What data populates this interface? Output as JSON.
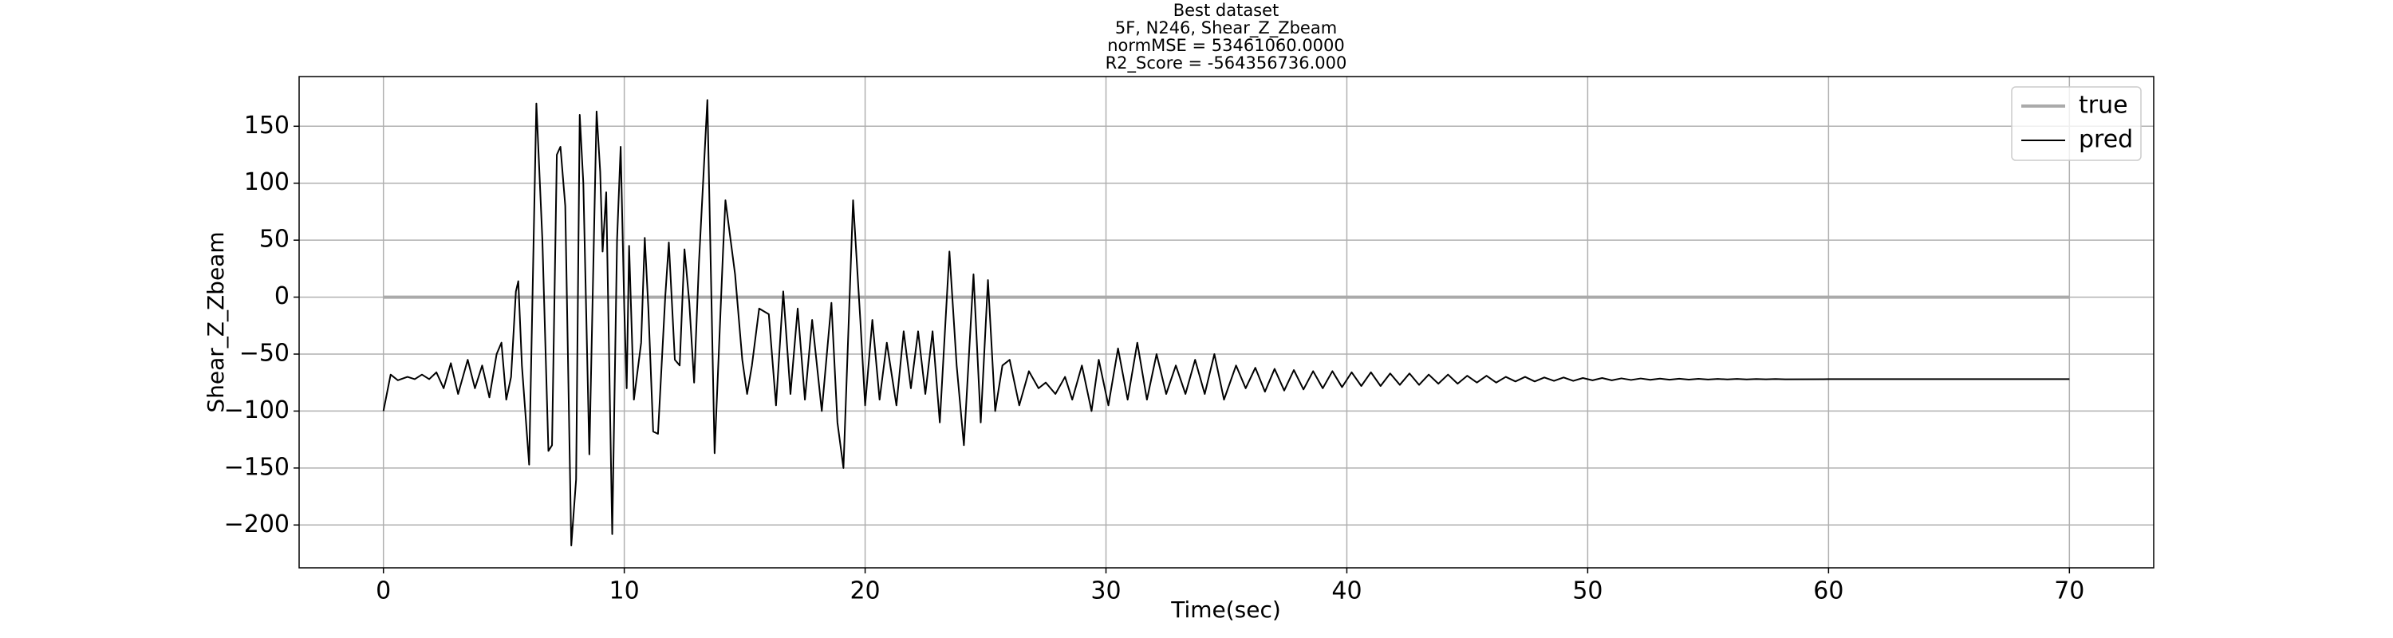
{
  "chart_data": {
    "type": "line",
    "title": [
      "Best dataset",
      "5F, N246, Shear_Z_Zbeam",
      "normMSE = 53461060.0000",
      "R2_Score = -564356736.000"
    ],
    "xlabel": "Time(sec)",
    "ylabel": "Shear_Z_Zbeam",
    "xlim": [
      -3.5,
      73.5
    ],
    "ylim": [
      -237.6,
      193.6
    ],
    "xticks": [
      0,
      10,
      20,
      30,
      40,
      50,
      60,
      70
    ],
    "yticks": [
      {
        "value": -200,
        "label": "−200"
      },
      {
        "value": -150,
        "label": "−150"
      },
      {
        "value": -100,
        "label": "−100"
      },
      {
        "value": -50,
        "label": "−50"
      },
      0,
      50,
      100,
      150
    ],
    "grid": true,
    "legend": "upper right",
    "series": [
      {
        "name": "true",
        "color": "#aaaaaa",
        "x": [
          0,
          70
        ],
        "values": [
          0,
          0
        ]
      },
      {
        "name": "pred",
        "color": "#000000",
        "x": [
          0,
          0.3,
          0.6,
          1.0,
          1.3,
          1.6,
          1.9,
          2.2,
          2.5,
          2.8,
          3.1,
          3.5,
          3.8,
          4.1,
          4.4,
          4.7,
          4.9,
          5.1,
          5.3,
          5.5,
          5.6,
          5.75,
          6.05,
          6.35,
          6.6,
          6.85,
          7.0,
          7.2,
          7.35,
          7.55,
          7.8,
          8.0,
          8.15,
          8.3,
          8.55,
          8.85,
          9.0,
          9.1,
          9.25,
          9.5,
          9.7,
          9.85,
          10.0,
          10.1,
          10.2,
          10.4,
          10.7,
          10.85,
          11.0,
          11.2,
          11.4,
          11.7,
          11.85,
          12.1,
          12.3,
          12.5,
          12.7,
          12.9,
          13.1,
          13.45,
          13.75,
          14.1,
          14.2,
          14.6,
          14.9,
          15.1,
          15.3,
          15.6,
          16.0,
          16.3,
          16.6,
          16.9,
          17.2,
          17.5,
          17.8,
          18.2,
          18.6,
          18.85,
          19.1,
          19.5,
          19.8,
          20.0,
          20.3,
          20.6,
          20.9,
          21.3,
          21.6,
          21.9,
          22.2,
          22.5,
          22.8,
          23.1,
          23.5,
          23.8,
          24.1,
          24.5,
          24.8,
          25.1,
          25.4,
          25.7,
          26.0,
          26.4,
          26.8,
          27.2,
          27.5,
          27.9,
          28.3,
          28.6,
          29.0,
          29.4,
          29.7,
          30.1,
          30.5,
          30.9,
          31.3,
          31.7,
          32.1,
          32.5,
          32.9,
          33.3,
          33.7,
          34.1,
          34.5,
          34.9,
          35.4,
          35.8,
          36.2,
          36.6,
          37.0,
          37.4,
          37.8,
          38.2,
          38.6,
          39.0,
          39.4,
          39.8,
          40.2,
          40.6,
          41.0,
          41.4,
          41.8,
          42.2,
          42.6,
          43.0,
          43.4,
          43.8,
          44.2,
          44.6,
          45.0,
          45.4,
          45.8,
          46.2,
          46.6,
          47.0,
          47.4,
          47.8,
          48.2,
          48.6,
          49.0,
          49.4,
          49.8,
          50.2,
          50.6,
          51.0,
          51.4,
          51.8,
          52.2,
          52.6,
          53.0,
          53.4,
          53.8,
          54.2,
          54.6,
          55.0,
          55.4,
          55.8,
          56.2,
          56.6,
          57.0,
          57.4,
          57.8,
          58.2,
          60,
          65,
          70
        ],
        "values": [
          -100,
          -68,
          -73,
          -70,
          -72,
          -68,
          -72,
          -66,
          -80,
          -58,
          -85,
          -55,
          -80,
          -60,
          -88,
          -50,
          -40,
          -90,
          -70,
          5,
          14,
          -60,
          -147,
          170,
          50,
          -135,
          -130,
          125,
          132,
          80,
          -218,
          -160,
          160,
          100,
          -138,
          163,
          110,
          40,
          92,
          -208,
          50,
          132,
          -10,
          -80,
          45,
          -90,
          -40,
          52,
          -10,
          -118,
          -120,
          0,
          48,
          -55,
          -60,
          42,
          -5,
          -75,
          30,
          173,
          -137,
          40,
          85,
          20,
          -55,
          -85,
          -60,
          -10,
          -15,
          -95,
          5,
          -85,
          -10,
          -90,
          -20,
          -100,
          -5,
          -110,
          -150,
          85,
          -20,
          -95,
          -20,
          -90,
          -40,
          -95,
          -30,
          -80,
          -30,
          -85,
          -30,
          -110,
          40,
          -60,
          -130,
          20,
          -110,
          15,
          -100,
          -60,
          -55,
          -95,
          -65,
          -80,
          -75,
          -85,
          -70,
          -90,
          -60,
          -100,
          -55,
          -95,
          -45,
          -90,
          -40,
          -90,
          -50,
          -85,
          -60,
          -85,
          -55,
          -85,
          -50,
          -90,
          -60,
          -80,
          -62,
          -83,
          -63,
          -82,
          -64,
          -81,
          -65,
          -80,
          -65,
          -79,
          -66,
          -78,
          -66,
          -78,
          -67,
          -77,
          -67,
          -77,
          -68,
          -76,
          -68,
          -76,
          -69,
          -75,
          -69,
          -75,
          -70,
          -74,
          -70,
          -74,
          -70.5,
          -73.5,
          -70.5,
          -73.5,
          -71,
          -73,
          -71,
          -73,
          -71.3,
          -72.7,
          -71.4,
          -72.6,
          -71.5,
          -72.5,
          -71.6,
          -72.4,
          -71.7,
          -72.3,
          -71.8,
          -72.2,
          -71.8,
          -72.2,
          -71.9,
          -72.1,
          -71.9,
          -72.1,
          -72,
          -72,
          -72
        ]
      }
    ]
  }
}
